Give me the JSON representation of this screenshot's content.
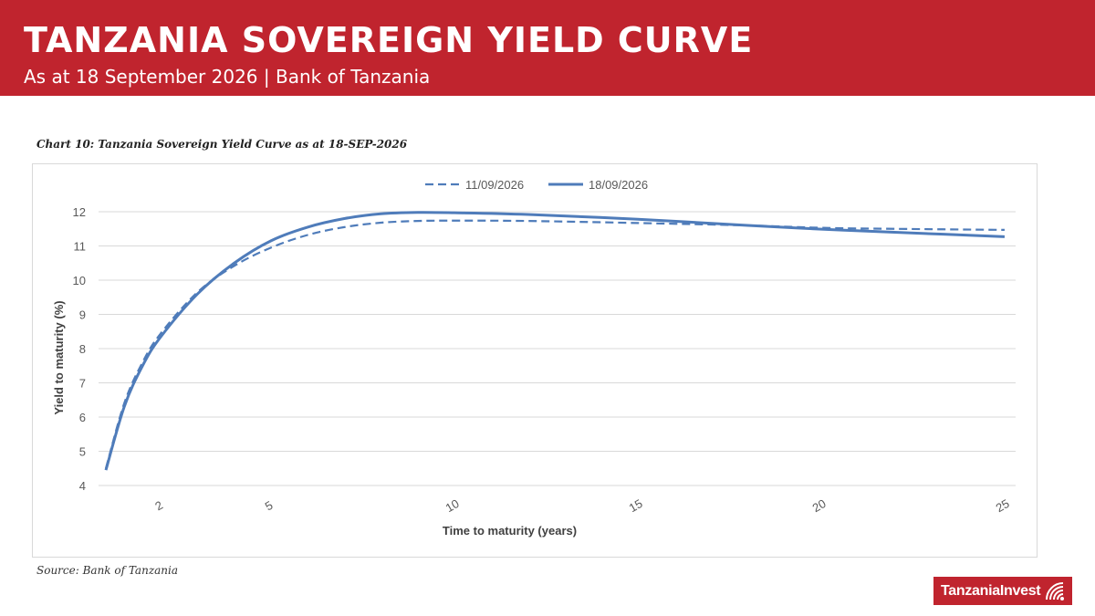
{
  "header": {
    "title": "TANZANIA SOVEREIGN YIELD CURVE",
    "subtitle": "As at 18 September 2026 | Bank of Tanzania"
  },
  "chart_caption": "Chart 10: Tanzania Sovereign Yield Curve as at 18-SEP-2026",
  "source": "Source: Bank of Tanzania",
  "logo": {
    "text": "TanzaniaInvest",
    "icon": "radio-waves-icon"
  },
  "colors": {
    "banner": "#c0242e",
    "series": "#4f7cba",
    "grid": "#d9d9d9",
    "axis_text": "#595959"
  },
  "chart_data": {
    "type": "line",
    "xlabel": "Time to maturity (years)",
    "ylabel": "Yield to maturity (%)",
    "xlim": [
      0.3,
      25.3
    ],
    "ylim": [
      4,
      12
    ],
    "x_ticks": [
      2,
      5,
      10,
      15,
      20,
      25
    ],
    "y_ticks": [
      4,
      5,
      6,
      7,
      8,
      9,
      10,
      11,
      12
    ],
    "grid": true,
    "legend_position": "top-center",
    "series": [
      {
        "name": "11/09/2026",
        "style": "dashed",
        "x": [
          0.5,
          1,
          1.5,
          2,
          3,
          4,
          5,
          6,
          7,
          8,
          9,
          10,
          12,
          15,
          18,
          20,
          22,
          25
        ],
        "y": [
          4.5,
          6.4,
          7.6,
          8.45,
          9.65,
          10.42,
          10.95,
          11.32,
          11.55,
          11.68,
          11.73,
          11.74,
          11.73,
          11.67,
          11.6,
          11.53,
          11.5,
          11.47
        ]
      },
      {
        "name": "18/09/2026",
        "style": "solid",
        "x": [
          0.5,
          1,
          1.5,
          2,
          3,
          4,
          5,
          6,
          7,
          8,
          9,
          10,
          12,
          15,
          18,
          20,
          22,
          25
        ],
        "y": [
          4.45,
          6.3,
          7.5,
          8.35,
          9.6,
          10.5,
          11.15,
          11.55,
          11.8,
          11.94,
          11.98,
          11.97,
          11.92,
          11.78,
          11.6,
          11.49,
          11.4,
          11.27
        ]
      }
    ]
  }
}
